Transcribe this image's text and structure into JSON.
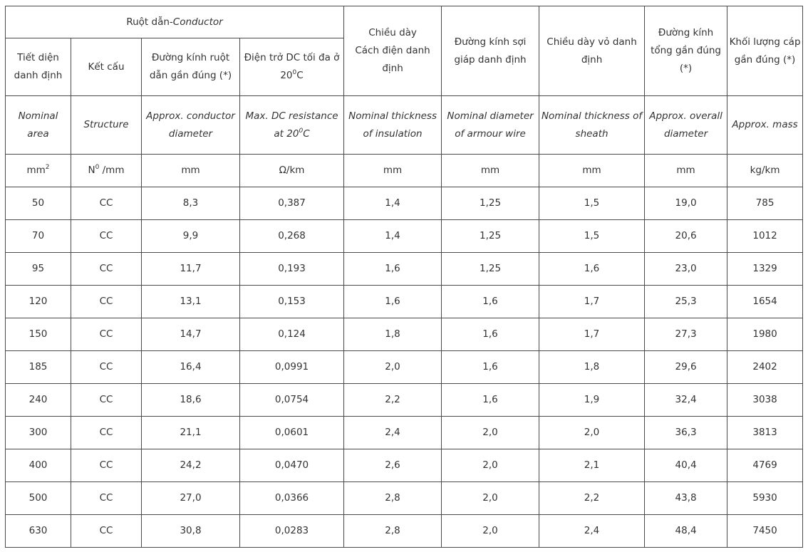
{
  "header": {
    "conductor_group_vi": "Ruột dẫn-",
    "conductor_group_en": "Conductor",
    "nominal_area_vi": "Tiết diện danh định",
    "structure_vi": "Kết cấu",
    "conductor_diameter_vi": "Đường kính ruột dẫn gần đúng (*)",
    "dc_resistance_vi_pre": "Điện trở DC tối đa ở 20",
    "dc_resistance_vi_sup": "0",
    "dc_resistance_vi_post": "C",
    "insulation_vi_line1": "Chiều dày",
    "insulation_vi_line2": "Cách điện danh định",
    "armour_vi": "Đường kính sợi giáp danh định",
    "sheath_vi": "Chiều dày vỏ danh định",
    "overall_diameter_vi": "Đường kính tổng gần đúng (*)",
    "mass_vi": "Khối lượng cáp gần đúng (*)",
    "nominal_area_en": "Nominal area",
    "structure_en": "Structure",
    "conductor_diameter_en": "Approx. conductor diameter",
    "dc_resistance_en_pre": "Max. DC resistance at 20",
    "dc_resistance_en_sup": "0",
    "dc_resistance_en_post": "C",
    "insulation_en": "Nominal thickness of insulation",
    "armour_en": "Nominal diameter of armour wire",
    "sheath_en": "Nominal thickness of sheath",
    "overall_diameter_en": "Approx. overall diameter",
    "mass_en": "Approx. mass"
  },
  "units": {
    "area_base": "mm",
    "area_sup": "2",
    "structure_base": "N",
    "structure_sup": "0",
    "structure_post": " /mm",
    "conductor_diameter": "mm",
    "dc_resistance": "Ω/km",
    "insulation": "mm",
    "armour": "mm",
    "sheath": "mm",
    "overall_diameter": "mm",
    "mass": "kg/km"
  },
  "rows": [
    [
      "50",
      "CC",
      "8,3",
      "0,387",
      "1,4",
      "1,25",
      "1,5",
      "19,0",
      "785"
    ],
    [
      "70",
      "CC",
      "9,9",
      "0,268",
      "1,4",
      "1,25",
      "1,5",
      "20,6",
      "1012"
    ],
    [
      "95",
      "CC",
      "11,7",
      "0,193",
      "1,6",
      "1,25",
      "1,6",
      "23,0",
      "1329"
    ],
    [
      "120",
      "CC",
      "13,1",
      "0,153",
      "1,6",
      "1,6",
      "1,7",
      "25,3",
      "1654"
    ],
    [
      "150",
      "CC",
      "14,7",
      "0,124",
      "1,8",
      "1,6",
      "1,7",
      "27,3",
      "1980"
    ],
    [
      "185",
      "CC",
      "16,4",
      "0,0991",
      "2,0",
      "1,6",
      "1,8",
      "29,6",
      "2402"
    ],
    [
      "240",
      "CC",
      "18,6",
      "0,0754",
      "2,2",
      "1,6",
      "1,9",
      "32,4",
      "3038"
    ],
    [
      "300",
      "CC",
      "21,1",
      "0,0601",
      "2,4",
      "2,0",
      "2,0",
      "36,3",
      "3813"
    ],
    [
      "400",
      "CC",
      "24,2",
      "0,0470",
      "2,6",
      "2,0",
      "2,1",
      "40,4",
      "4769"
    ],
    [
      "500",
      "CC",
      "27,0",
      "0,0366",
      "2,8",
      "2,0",
      "2,2",
      "43,8",
      "5930"
    ],
    [
      "630",
      "CC",
      "30,8",
      "0,0283",
      "2,8",
      "2,0",
      "2,4",
      "48,4",
      "7450"
    ]
  ]
}
